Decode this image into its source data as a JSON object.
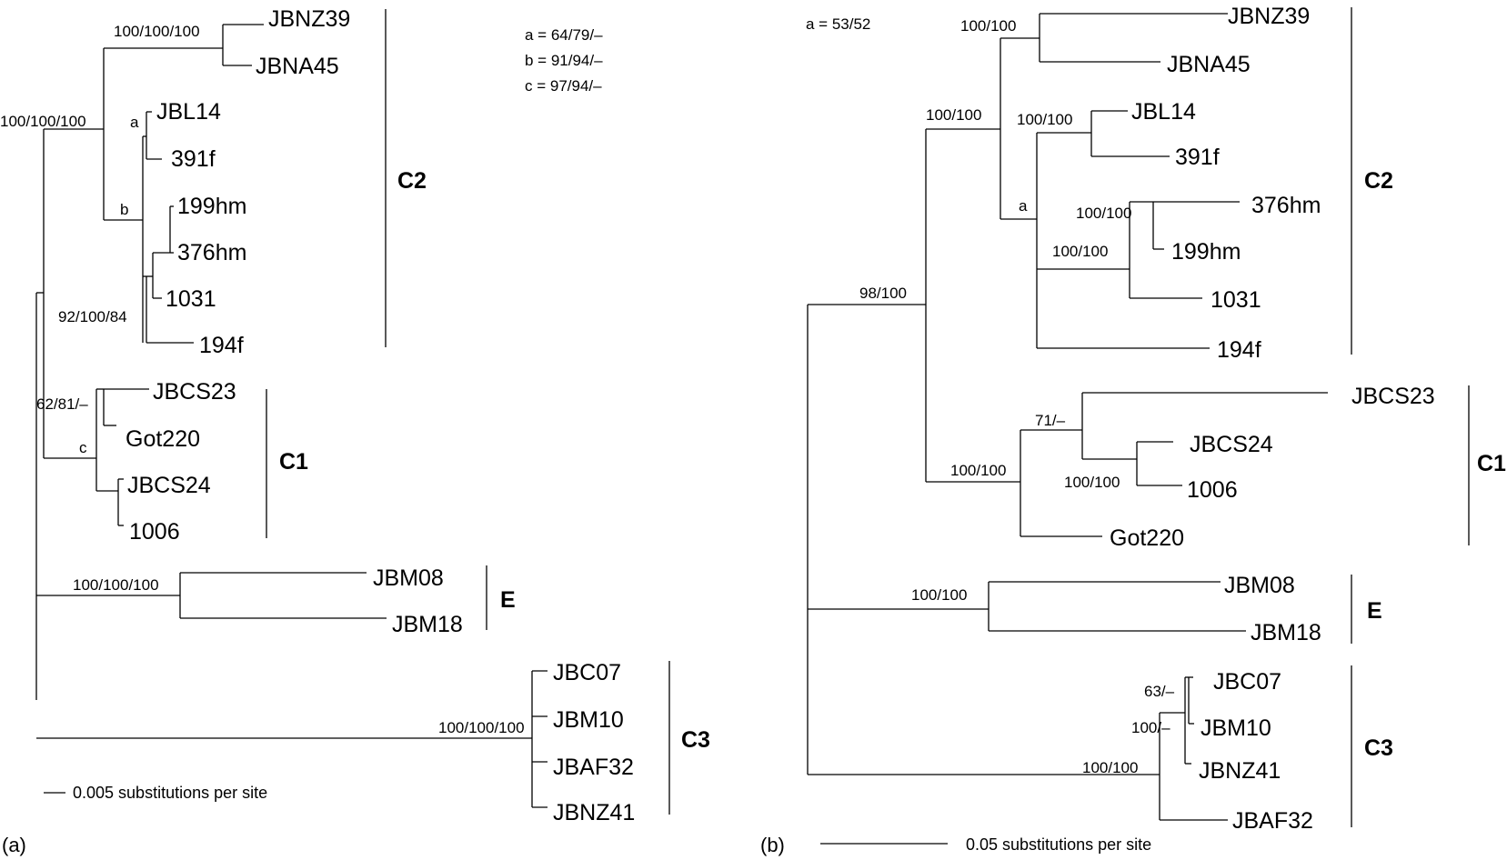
{
  "panel_a": {
    "label": "(a)",
    "legend": [
      "a = 64/79/–",
      "b = 91/94/–",
      "c = 97/94/–"
    ],
    "scale_text": "0.005 substitutions per site",
    "tips": {
      "JBNZ39": "JBNZ39",
      "JBNA45": "JBNA45",
      "JBL14": "JBL14",
      "391f": "391f",
      "199hm": "199hm",
      "376hm": "376hm",
      "1031": "1031",
      "194f": "194f",
      "JBCS23": "JBCS23",
      "Got220": "Got220",
      "JBCS24": "JBCS24",
      "1006": "1006",
      "JBM08": "JBM08",
      "JBM18": "JBM18",
      "JBC07": "JBC07",
      "JBM10": "JBM10",
      "JBAF32": "JBAF32",
      "JBNZ41": "JBNZ41"
    },
    "support": {
      "nz": "100/100/100",
      "c2": "100/100/100",
      "a": "a",
      "b": "b",
      "inner": "92/100/84",
      "c1a": "62/81/–",
      "c": "c",
      "e": "100/100/100",
      "c3": "100/100/100"
    },
    "clades": {
      "C2": "C2",
      "C1": "C1",
      "E": "E",
      "C3": "C3"
    }
  },
  "panel_b": {
    "label": "(b)",
    "legend": [
      "a = 53/52"
    ],
    "scale_text": "0.05 substitutions per site",
    "tips": {
      "JBNZ39": "JBNZ39",
      "JBNA45": "JBNA45",
      "JBL14": "JBL14",
      "391f": "391f",
      "376hm": "376hm",
      "199hm": "199hm",
      "1031": "1031",
      "194f": "194f",
      "JBCS23": "JBCS23",
      "JBCS24": "JBCS24",
      "1006": "1006",
      "Got220": "Got220",
      "JBM08": "JBM08",
      "JBM18": "JBM18",
      "JBC07": "JBC07",
      "JBM10": "JBM10",
      "JBNZ41": "JBNZ41",
      "JBAF32": "JBAF32"
    },
    "support": {
      "nz": "100/100",
      "c2in": "100/100",
      "jbl": "100/100",
      "a": "a",
      "hm": "100/100",
      "hmc": "100/100",
      "root": "98/100",
      "c1": "100/100",
      "cs23": "71/–",
      "cs24": "100/100",
      "e": "100/100",
      "jbc07": "63/–",
      "jbm10": "100/–",
      "c3": "100/100"
    },
    "clades": {
      "C2": "C2",
      "C1": "C1",
      "E": "E",
      "C3": "C3"
    }
  }
}
